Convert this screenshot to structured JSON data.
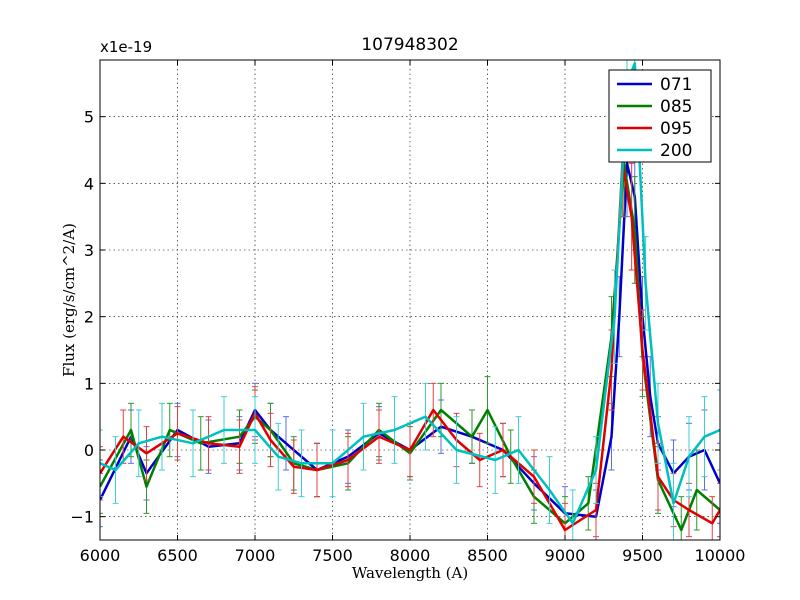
{
  "chart_data": {
    "type": "line",
    "title": "107948302",
    "xlabel": "Wavelength (A)",
    "ylabel": "Flux (erg/s/cm^2/A)",
    "y_multiplier_label": "x1e-19",
    "xlim": [
      6000,
      10000
    ],
    "ylim": [
      -1.35,
      5.85
    ],
    "xticks": [
      6000,
      6500,
      7000,
      7500,
      8000,
      8500,
      9000,
      9500,
      10000
    ],
    "xtick_labels": [
      "6000",
      "6500",
      "7000",
      "7500",
      "8000",
      "8500",
      "9000",
      "9500",
      "10000"
    ],
    "yticks": [
      -1,
      0,
      1,
      2,
      3,
      4,
      5
    ],
    "ytick_labels": [
      "−1",
      "0",
      "1",
      "2",
      "3",
      "4",
      "5"
    ],
    "grid": true,
    "legend_position": "top-right",
    "series": [
      {
        "name": "071",
        "color": "#0000cc",
        "x": [
          6000,
          6200,
          6300,
          6500,
          6700,
          6900,
          7000,
          7100,
          7200,
          7400,
          7600,
          7800,
          8000,
          8200,
          8400,
          8600,
          8800,
          9000,
          9200,
          9300,
          9350,
          9400,
          9450,
          9500,
          9550,
          9600,
          9700,
          9800,
          9900,
          10000
        ],
        "y": [
          -0.75,
          0.2,
          -0.35,
          0.3,
          0.05,
          0.1,
          0.6,
          0.3,
          0.1,
          -0.3,
          -0.1,
          0.25,
          0.0,
          0.35,
          0.2,
          0.0,
          -0.5,
          -0.95,
          -1.0,
          0.2,
          2.0,
          4.3,
          3.8,
          2.0,
          0.8,
          0.1,
          -0.35,
          -0.1,
          0.0,
          -0.5
        ],
        "err": [
          0.4,
          0.4,
          0.4,
          0.4,
          0.4,
          0.4,
          0.4,
          0.4,
          0.4,
          0.4,
          0.4,
          0.4,
          0.4,
          0.4,
          0.4,
          0.4,
          0.4,
          0.4,
          0.4,
          0.5,
          0.6,
          0.8,
          0.8,
          0.6,
          0.6,
          0.4,
          0.5,
          0.5,
          0.6,
          0.6
        ],
        "err_color": "#5a6fe6"
      },
      {
        "name": "085",
        "color": "#007f00",
        "x": [
          6000,
          6200,
          6300,
          6450,
          6650,
          6900,
          7000,
          7100,
          7250,
          7400,
          7600,
          7800,
          8000,
          8200,
          8400,
          8500,
          8650,
          8800,
          9000,
          9150,
          9300,
          9380,
          9450,
          9500,
          9600,
          9750,
          9850,
          10000
        ],
        "y": [
          -0.55,
          0.3,
          -0.55,
          0.3,
          0.1,
          0.2,
          0.5,
          0.3,
          -0.2,
          -0.3,
          -0.2,
          0.3,
          -0.05,
          0.6,
          0.2,
          0.6,
          -0.1,
          -0.7,
          -1.1,
          -0.8,
          1.7,
          4.3,
          3.3,
          1.4,
          -0.45,
          -1.2,
          -0.6,
          -0.9
        ],
        "err": [
          0.4,
          0.4,
          0.4,
          0.4,
          0.4,
          0.4,
          0.4,
          0.4,
          0.4,
          0.4,
          0.4,
          0.4,
          0.4,
          0.4,
          0.4,
          0.5,
          0.4,
          0.4,
          0.4,
          0.4,
          0.6,
          0.8,
          0.8,
          0.6,
          0.5,
          0.5,
          0.6,
          0.6
        ],
        "err_color": "#2e962e"
      },
      {
        "name": "095",
        "color": "#e00000",
        "x": [
          6000,
          6150,
          6300,
          6500,
          6700,
          6900,
          7000,
          7100,
          7250,
          7400,
          7600,
          7800,
          8000,
          8150,
          8300,
          8450,
          8600,
          8800,
          9000,
          9200,
          9300,
          9370,
          9430,
          9500,
          9600,
          9700,
          9800,
          9950,
          10000
        ],
        "y": [
          -0.35,
          0.2,
          -0.05,
          0.25,
          0.1,
          0.05,
          0.55,
          0.15,
          -0.25,
          -0.3,
          -0.15,
          0.2,
          0.0,
          0.6,
          0.15,
          -0.15,
          0.0,
          -0.4,
          -1.2,
          -0.9,
          1.2,
          4.3,
          3.5,
          1.5,
          -0.4,
          -0.75,
          -0.9,
          -1.1,
          -0.9
        ],
        "err": [
          0.4,
          0.4,
          0.4,
          0.4,
          0.4,
          0.4,
          0.4,
          0.4,
          0.4,
          0.4,
          0.4,
          0.4,
          0.4,
          0.4,
          0.4,
          0.4,
          0.4,
          0.4,
          0.4,
          0.4,
          0.6,
          0.8,
          0.8,
          0.6,
          0.5,
          0.4,
          0.4,
          0.4,
          0.4
        ],
        "err_color": "#e04040"
      },
      {
        "name": "200",
        "color": "#00bfbf",
        "x": [
          6000,
          6100,
          6250,
          6400,
          6600,
          6800,
          7000,
          7150,
          7300,
          7500,
          7700,
          7900,
          8100,
          8300,
          8550,
          8700,
          8900,
          9050,
          9200,
          9320,
          9400,
          9450,
          9520,
          9600,
          9700,
          9800,
          9900,
          10000
        ],
        "y": [
          -0.2,
          -0.3,
          0.1,
          0.2,
          0.1,
          0.3,
          0.3,
          -0.1,
          -0.2,
          -0.2,
          0.2,
          0.3,
          0.5,
          0.0,
          -0.15,
          0.0,
          -0.6,
          -1.1,
          -0.3,
          2.0,
          5.5,
          5.8,
          2.5,
          0.4,
          -0.8,
          -0.1,
          0.2,
          0.3
        ],
        "err": [
          0.5,
          0.5,
          0.5,
          0.5,
          0.5,
          0.5,
          0.5,
          0.5,
          0.5,
          0.5,
          0.5,
          0.5,
          0.5,
          0.5,
          0.5,
          0.5,
          0.5,
          0.5,
          0.5,
          0.7,
          0.9,
          0.9,
          0.7,
          0.6,
          0.6,
          0.6,
          0.6,
          0.6
        ],
        "err_color": "#40cfcf"
      }
    ]
  }
}
